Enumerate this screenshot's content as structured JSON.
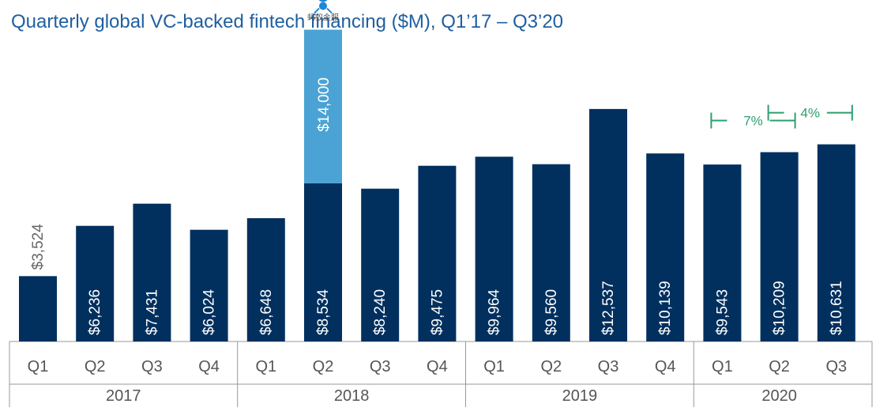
{
  "chart_data": {
    "type": "bar",
    "title": "Quarterly global VC-backed fintech financing ($M), Q1’17 – Q3’20",
    "xlabel": "",
    "ylabel": "",
    "ylim": [
      0,
      16000
    ],
    "years": [
      {
        "label": "2017",
        "quarters": [
          "Q1",
          "Q2",
          "Q3",
          "Q4"
        ]
      },
      {
        "label": "2018",
        "quarters": [
          "Q1",
          "Q2",
          "Q3",
          "Q4"
        ]
      },
      {
        "label": "2019",
        "quarters": [
          "Q1",
          "Q2",
          "Q3",
          "Q4"
        ]
      },
      {
        "label": "2020",
        "quarters": [
          "Q1",
          "Q2",
          "Q3"
        ]
      }
    ],
    "values": [
      3524,
      6236,
      7431,
      6024,
      6648,
      8534,
      8240,
      9475,
      9964,
      9560,
      12537,
      10139,
      9543,
      10209,
      10631
    ],
    "value_labels": [
      "$3,524",
      "$6,236",
      "$7,431",
      "$6,024",
      "$6,648",
      "$8,534",
      "$8,240",
      "$9,475",
      "$9,964",
      "$9,560",
      "$12,537",
      "$10,139",
      "$9,543",
      "$10,209",
      "$10,631"
    ],
    "stacked_extra": {
      "index": 5,
      "value": 14000,
      "label": "$14,000",
      "color": "#4aa3d4",
      "logo_text": "蚂蚁金服"
    },
    "growth_annotations": [
      {
        "from": 12,
        "to": 13,
        "label": "7%"
      },
      {
        "from": 13,
        "to": 14,
        "label": "4%"
      }
    ],
    "colors": {
      "bar": "#01305f",
      "title": "#1f5fa0",
      "annotation": "#2e9e6e",
      "axis": "#999999"
    }
  }
}
